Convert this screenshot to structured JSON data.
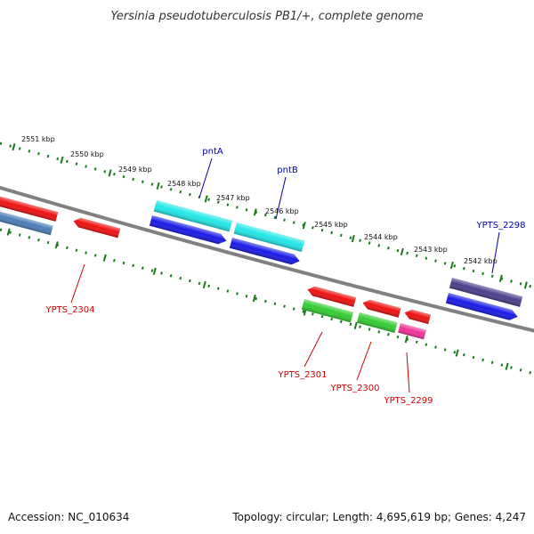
{
  "title": "Yersinia pseudotuberculosis PB1/+, complete genome",
  "footer": {
    "accession": "Accession: NC_010634",
    "summary": "Topology: circular; Length: 4,695,619 bp; Genes: 4,247"
  },
  "colors": {
    "backbone": "#808080",
    "tick": "#1a7a1a",
    "label_red": "#cc0000",
    "label_blue": "#0000aa"
  },
  "kbp_labels": [
    "2551 kbp",
    "2550 kbp",
    "2549 kbp",
    "2548 kbp",
    "2547 kbp",
    "2546 kbp",
    "2545 kbp",
    "2544 kbp",
    "2543 kbp",
    "2542 kbp"
  ],
  "genes": [
    {
      "id": "g-red-left",
      "color": "#ee1111"
    },
    {
      "id": "g-steel-left",
      "color": "#4a7fb8"
    },
    {
      "id": "YPTS_2304",
      "color": "#ee1111"
    },
    {
      "id": "pntA",
      "color": "#22e6e6"
    },
    {
      "id": "pntA-cds",
      "color": "#1a1ae6"
    },
    {
      "id": "pntB",
      "color": "#22e6e6"
    },
    {
      "id": "pntB-cds",
      "color": "#1a1ae6"
    },
    {
      "id": "YPTS_2301-top",
      "color": "#ee1111"
    },
    {
      "id": "YPTS_2301",
      "color": "#33cc33"
    },
    {
      "id": "YPTS_2300-top",
      "color": "#ee1111"
    },
    {
      "id": "YPTS_2300",
      "color": "#33cc33"
    },
    {
      "id": "YPTS_2299-top",
      "color": "#ee1111"
    },
    {
      "id": "YPTS_2299",
      "color": "#ee3399"
    },
    {
      "id": "YPTS_2298",
      "color": "#4a3f8a"
    },
    {
      "id": "YPTS_2298-cds",
      "color": "#1a1ae6"
    }
  ],
  "labels": {
    "pntA": "pntA",
    "pntB": "pntB",
    "YPTS_2298": "YPTS_2298",
    "YPTS_2304": "YPTS_2304",
    "YPTS_2301": "YPTS_2301",
    "YPTS_2300": "YPTS_2300",
    "YPTS_2299": "YPTS_2299"
  }
}
